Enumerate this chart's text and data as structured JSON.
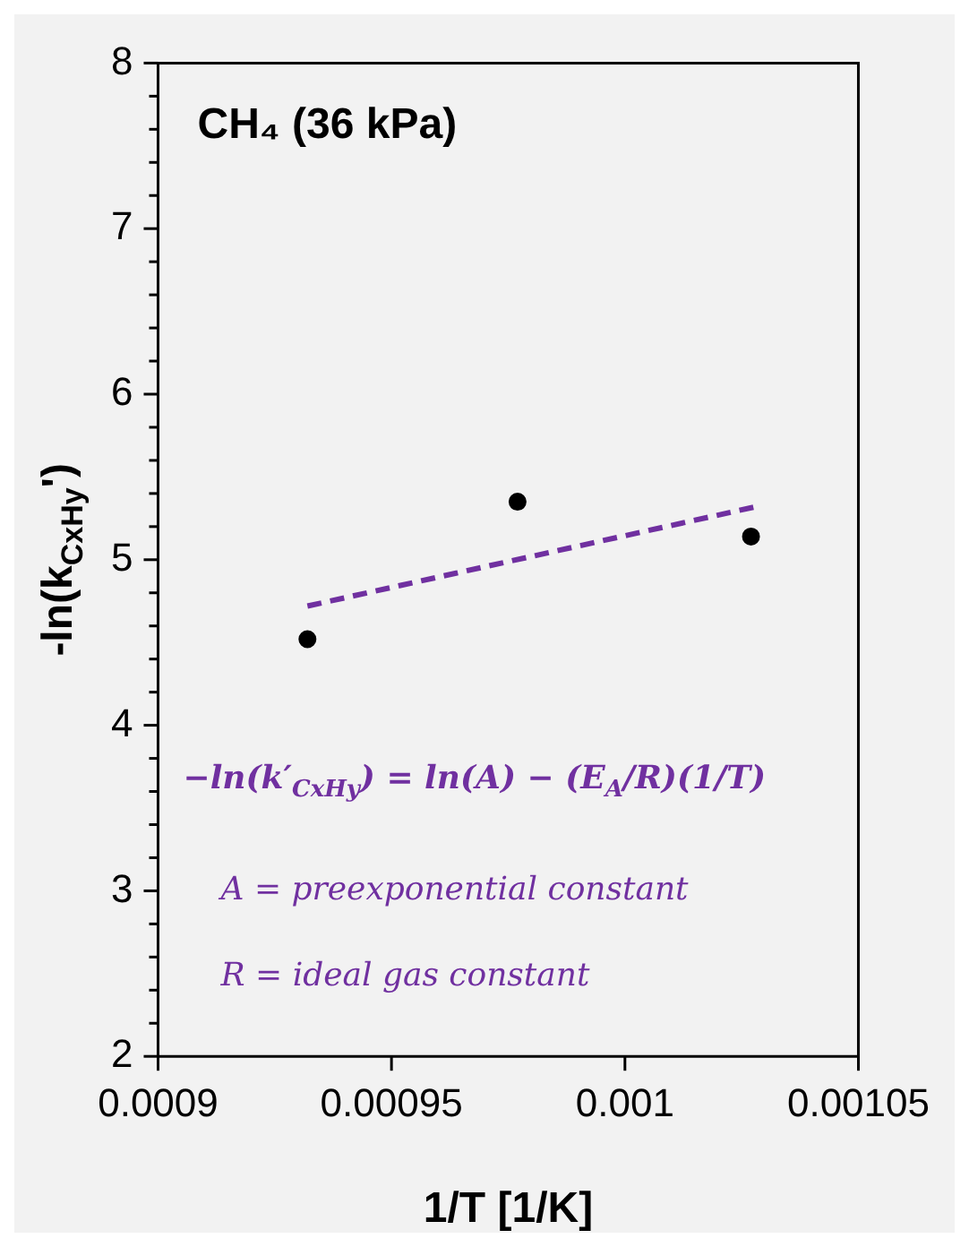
{
  "chart_data": {
    "type": "scatter",
    "title": "CH₄ (36 kPa)",
    "xlabel": "1/T [1/K]",
    "ylabel": "-ln(k$_{CxHy}$')",
    "annotations": [
      "−ln(k′$_{CxHy}$) = ln(A) − (E$_{A}$/R)(1/T)",
      "A = preexponential constant",
      "R = ideal gas constant"
    ],
    "xlim": [
      0.0009,
      0.00105
    ],
    "xticks": [
      0.0009,
      0.00095,
      0.001,
      0.00105
    ],
    "ylim": [
      2,
      8
    ],
    "yticks": [
      2,
      {
        "value": 2.2,
        "label": null
      },
      {
        "value": 2.4,
        "label": null
      },
      {
        "value": 2.6,
        "label": null
      },
      {
        "value": 2.8,
        "label": null
      },
      3,
      {
        "value": 3.2,
        "label": null
      },
      {
        "value": 3.4,
        "label": null
      },
      {
        "value": 3.6,
        "label": null
      },
      {
        "value": 3.8,
        "label": null
      },
      4,
      {
        "value": 4.2,
        "label": null
      },
      {
        "value": 4.4,
        "label": null
      },
      {
        "value": 4.6,
        "label": null
      },
      {
        "value": 4.8,
        "label": null
      },
      5,
      {
        "value": 5.2,
        "label": null
      },
      {
        "value": 5.4,
        "label": null
      },
      {
        "value": 5.6,
        "label": null
      },
      {
        "value": 5.8,
        "label": null
      },
      6,
      {
        "value": 6.2,
        "label": null
      },
      {
        "value": 6.4,
        "label": null
      },
      {
        "value": 6.6,
        "label": null
      },
      {
        "value": 6.8,
        "label": null
      },
      7,
      {
        "value": 7.2,
        "label": null
      },
      {
        "value": 7.4,
        "label": null
      },
      {
        "value": 7.6,
        "label": null
      },
      {
        "value": 7.8,
        "label": null
      },
      8
    ],
    "grid": false,
    "legend": false,
    "series": [
      {
        "type": "scatter",
        "color": "#000000",
        "marker": "circle",
        "x": [
          0.000932,
          0.000977,
          0.001027
        ],
        "values": [
          4.52,
          5.35,
          5.14
        ]
      },
      {
        "type": "line",
        "color": "#7030a0",
        "line_style": "dashed",
        "marker": "none",
        "x": [
          0.000932,
          0.001028
        ],
        "values": [
          4.72,
          5.32
        ]
      }
    ]
  }
}
